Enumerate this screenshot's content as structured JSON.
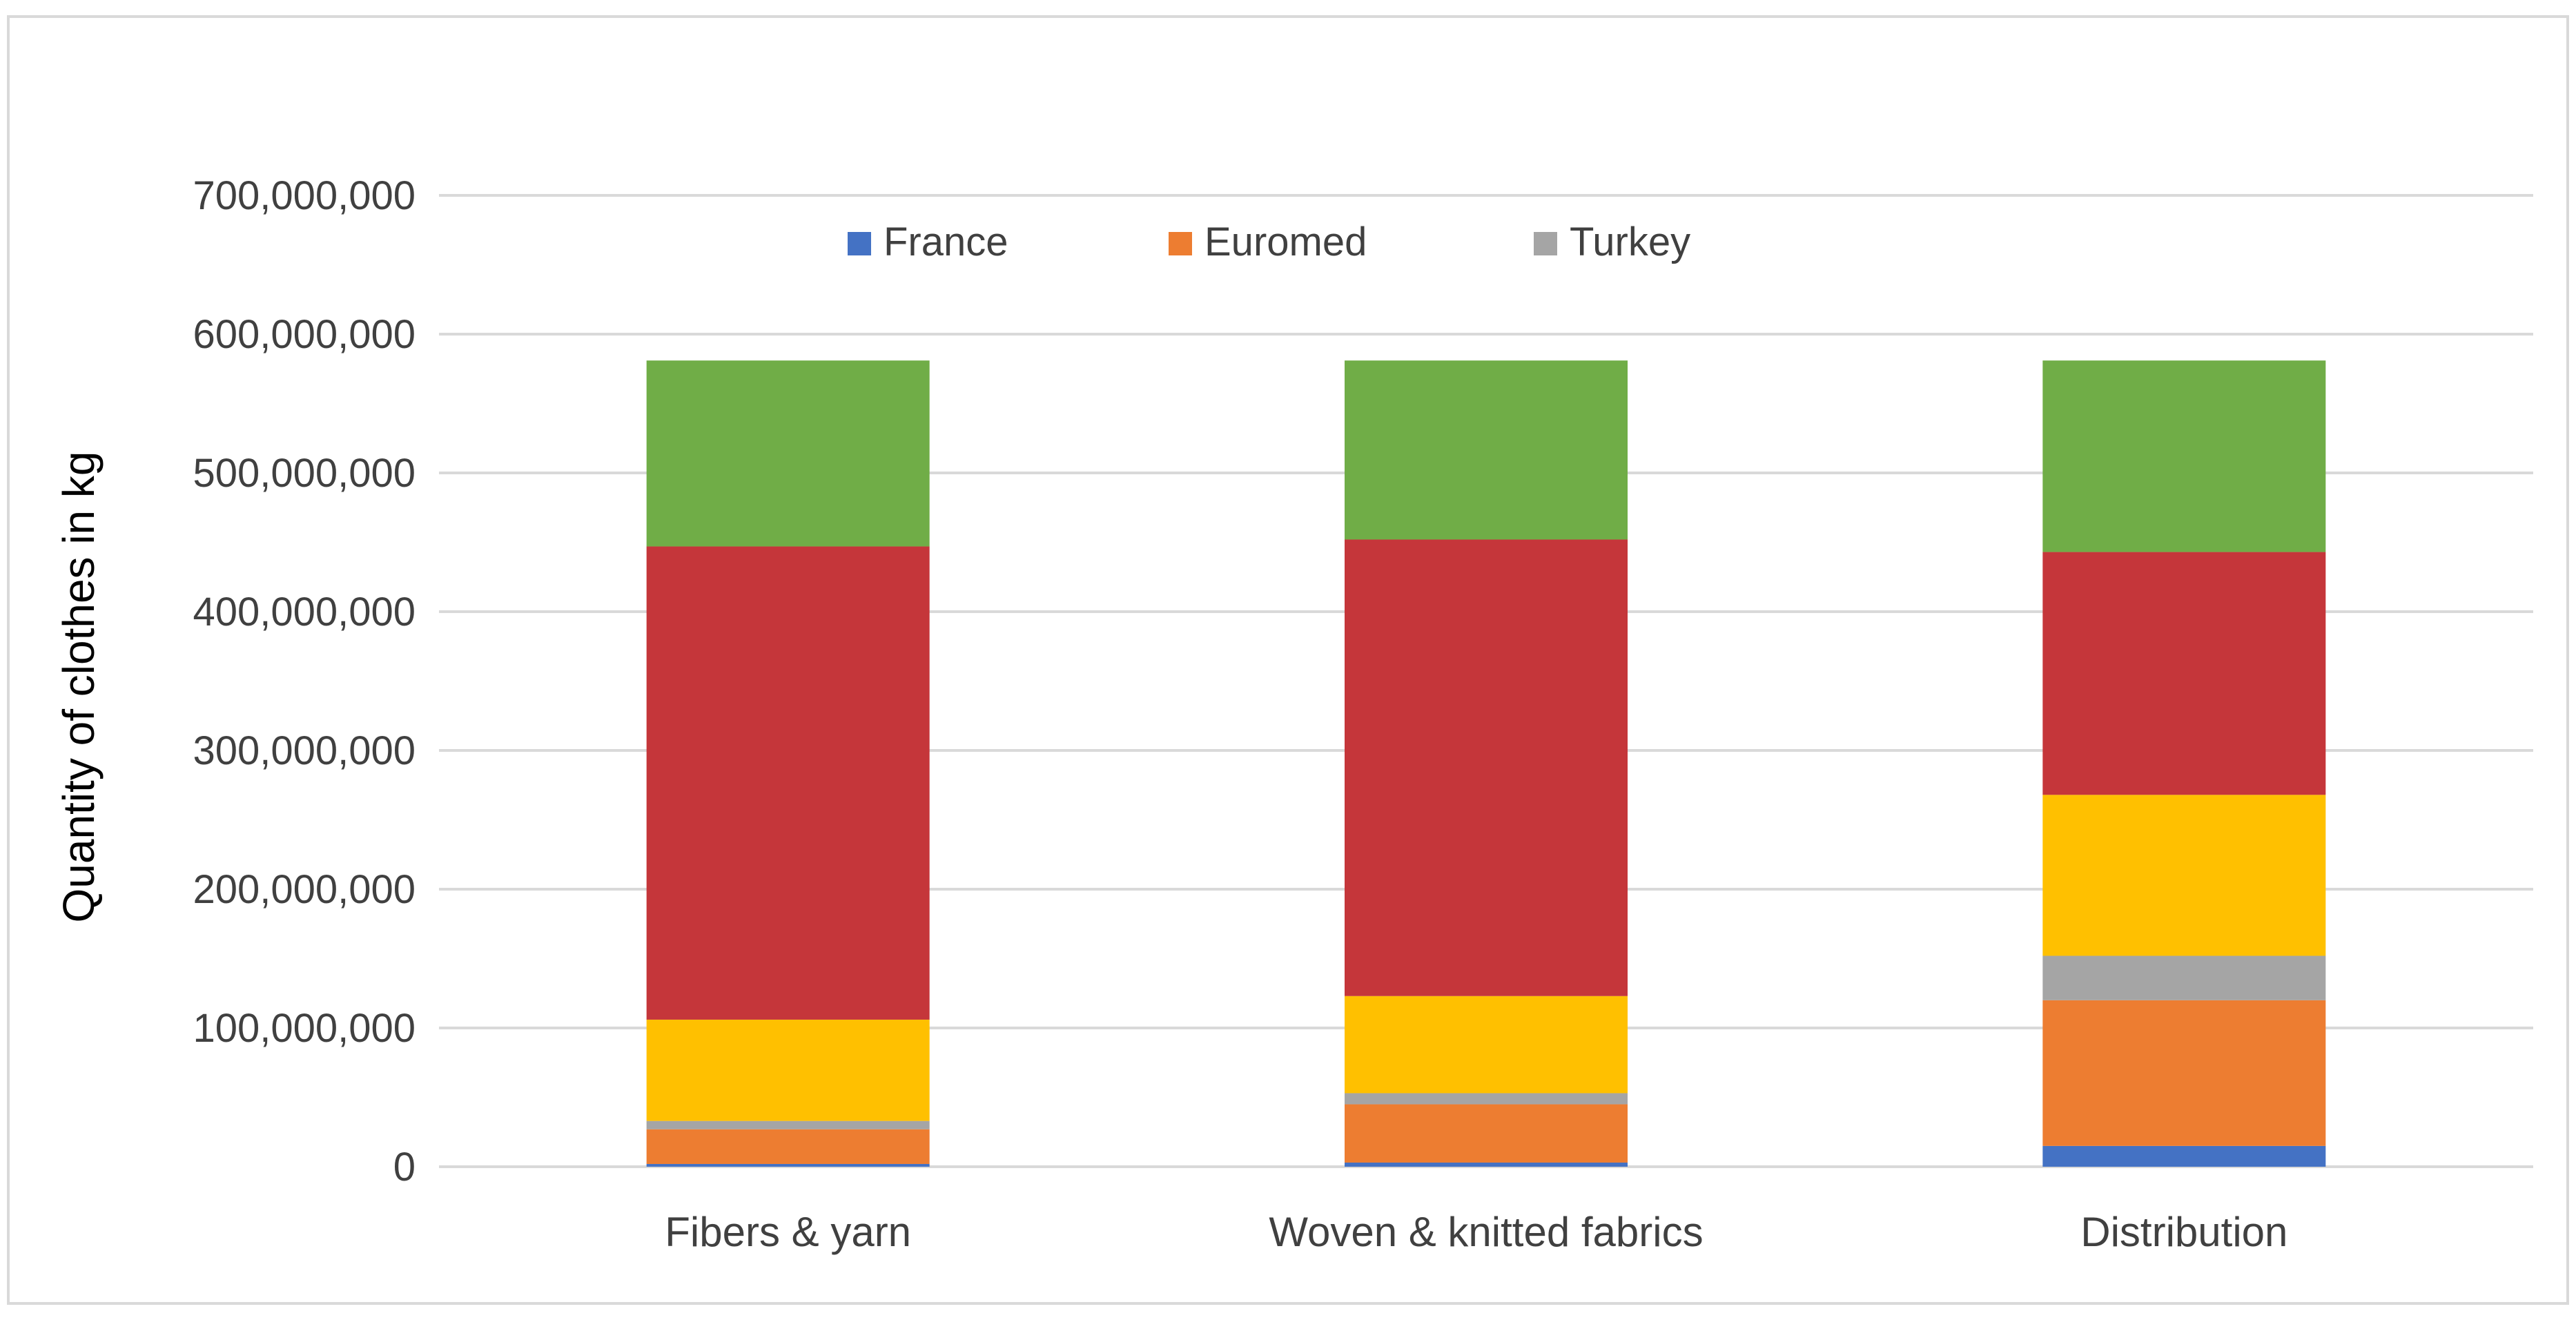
{
  "chart_data": {
    "type": "bar",
    "stacked": true,
    "categories": [
      "Fibers & yarn",
      "Woven & knitted fabrics",
      "Distribution"
    ],
    "series": [
      {
        "name": "France",
        "color": "#4472c4",
        "values": [
          2000000,
          3000000,
          15000000
        ]
      },
      {
        "name": "Euromed",
        "color": "#ed7d31",
        "values": [
          25000000,
          42000000,
          105000000
        ]
      },
      {
        "name": "Turkey",
        "color": "#a5a5a5",
        "values": [
          6000000,
          8000000,
          32000000
        ]
      },
      {
        "color": "#ffc000",
        "values": [
          73000000,
          70000000,
          116000000
        ]
      },
      {
        "color": "#c5363a",
        "values": [
          341000000,
          329000000,
          175000000
        ]
      },
      {
        "color": "#70ad47",
        "values": [
          134000000,
          129000000,
          138000000
        ]
      }
    ],
    "ylabel": "Quantity of clothes in kg",
    "xlabel": "",
    "ylim": [
      0,
      700000000
    ],
    "yticks": [
      0,
      100000000,
      200000000,
      300000000,
      400000000,
      500000000,
      600000000,
      700000000
    ],
    "ytick_labels": [
      "0",
      "100,000,000",
      "200,000,000",
      "300,000,000",
      "400,000,000",
      "500,000,000",
      "600,000,000",
      "700,000,000"
    ],
    "grid": true,
    "legend_position": "top"
  }
}
